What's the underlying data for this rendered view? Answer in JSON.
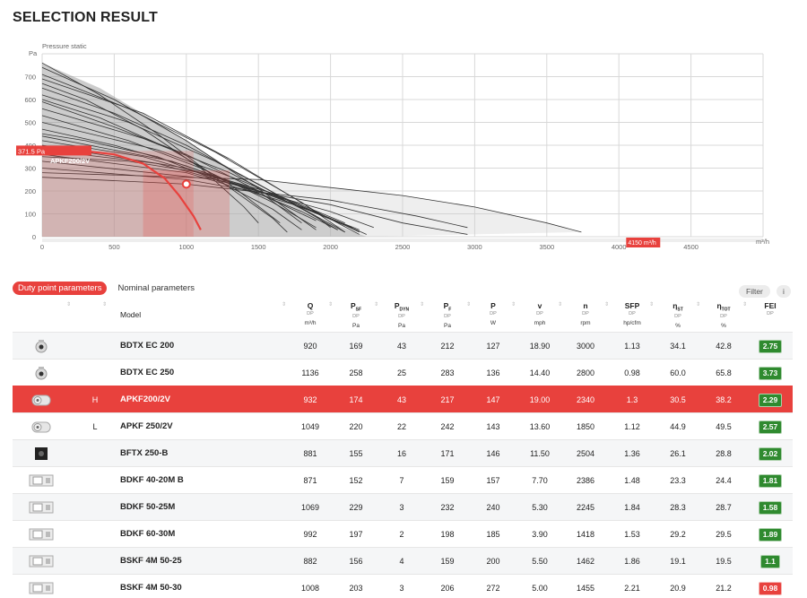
{
  "page": {
    "title": "SELECTION RESULT"
  },
  "chart_data": {
    "type": "line",
    "title": "",
    "ylabel": "Pressure static",
    "y_unit": "Pa",
    "x_unit": "m³/h",
    "xlim": [
      0,
      5000
    ],
    "ylim": [
      0,
      800
    ],
    "x_ticks": [
      0,
      500,
      1000,
      1500,
      2000,
      2500,
      3000,
      3500,
      4000,
      4500
    ],
    "y_ticks": [
      0,
      100,
      200,
      300,
      400,
      500,
      600,
      700
    ],
    "duty_point": {
      "x": 1000,
      "y": 230
    },
    "pressure_marker": "371.5 Pa",
    "flow_marker": "4150 m³/h",
    "highlight_label": "APKF200/2V",
    "highlight_curve": [
      [
        0,
        375
      ],
      [
        250,
        378
      ],
      [
        500,
        360
      ],
      [
        700,
        320
      ],
      [
        850,
        255
      ],
      [
        950,
        180
      ],
      [
        1050,
        90
      ],
      [
        1100,
        30
      ]
    ],
    "curves": [
      [
        [
          0,
          760
        ],
        [
          400,
          620
        ],
        [
          800,
          450
        ],
        [
          1200,
          260
        ],
        [
          1600,
          80
        ],
        [
          1700,
          20
        ]
      ],
      [
        [
          0,
          740
        ],
        [
          500,
          600
        ],
        [
          1000,
          420
        ],
        [
          1500,
          210
        ],
        [
          1900,
          30
        ]
      ],
      [
        [
          0,
          710
        ],
        [
          600,
          560
        ],
        [
          1200,
          370
        ],
        [
          1800,
          150
        ],
        [
          2100,
          20
        ]
      ],
      [
        [
          0,
          690
        ],
        [
          700,
          540
        ],
        [
          1300,
          340
        ],
        [
          1900,
          110
        ],
        [
          2200,
          10
        ]
      ],
      [
        [
          0,
          650
        ],
        [
          500,
          540
        ],
        [
          1000,
          400
        ],
        [
          1500,
          230
        ],
        [
          1900,
          90
        ],
        [
          2000,
          40
        ]
      ],
      [
        [
          0,
          620
        ],
        [
          600,
          500
        ],
        [
          1200,
          330
        ],
        [
          1700,
          160
        ],
        [
          2050,
          30
        ]
      ],
      [
        [
          0,
          590
        ],
        [
          500,
          480
        ],
        [
          1000,
          360
        ],
        [
          1500,
          200
        ],
        [
          1800,
          60
        ]
      ],
      [
        [
          0,
          560
        ],
        [
          700,
          430
        ],
        [
          1300,
          280
        ],
        [
          1900,
          90
        ],
        [
          2100,
          20
        ]
      ],
      [
        [
          0,
          530
        ],
        [
          600,
          420
        ],
        [
          1100,
          300
        ],
        [
          1600,
          150
        ],
        [
          1900,
          40
        ]
      ],
      [
        [
          0,
          500
        ],
        [
          800,
          380
        ],
        [
          1400,
          240
        ],
        [
          2000,
          80
        ],
        [
          2200,
          20
        ]
      ],
      [
        [
          0,
          470
        ],
        [
          500,
          400
        ],
        [
          1000,
          310
        ],
        [
          1500,
          190
        ],
        [
          1900,
          70
        ]
      ],
      [
        [
          0,
          440
        ],
        [
          900,
          330
        ],
        [
          1600,
          180
        ],
        [
          2100,
          50
        ]
      ],
      [
        [
          0,
          420
        ],
        [
          700,
          350
        ],
        [
          1300,
          240
        ],
        [
          1800,
          110
        ],
        [
          2050,
          30
        ]
      ],
      [
        [
          0,
          400
        ],
        [
          1000,
          300
        ],
        [
          1700,
          160
        ],
        [
          2150,
          40
        ]
      ],
      [
        [
          0,
          380
        ],
        [
          800,
          320
        ],
        [
          1500,
          200
        ],
        [
          2000,
          80
        ],
        [
          2250,
          10
        ]
      ],
      [
        [
          0,
          360
        ],
        [
          1000,
          280
        ],
        [
          1800,
          130
        ],
        [
          2200,
          30
        ]
      ],
      [
        [
          0,
          330
        ],
        [
          1200,
          250
        ],
        [
          2000,
          110
        ],
        [
          2300,
          40
        ]
      ],
      [
        [
          0,
          300
        ],
        [
          1000,
          250
        ],
        [
          2000,
          140
        ],
        [
          2500,
          60
        ],
        [
          2950,
          10
        ]
      ],
      [
        [
          0,
          260
        ],
        [
          1000,
          230
        ],
        [
          2000,
          160
        ],
        [
          2600,
          90
        ],
        [
          2950,
          40
        ]
      ],
      [
        [
          0,
          280
        ],
        [
          1500,
          250
        ],
        [
          2500,
          180
        ],
        [
          3000,
          130
        ],
        [
          3500,
          60
        ],
        [
          3740,
          20
        ]
      ],
      [
        [
          0,
          670
        ],
        [
          300,
          600
        ],
        [
          700,
          470
        ],
        [
          1100,
          300
        ],
        [
          1400,
          130
        ],
        [
          1500,
          60
        ]
      ],
      [
        [
          0,
          600
        ],
        [
          400,
          520
        ],
        [
          900,
          380
        ],
        [
          1300,
          230
        ],
        [
          1650,
          60
        ]
      ],
      [
        [
          0,
          450
        ],
        [
          300,
          420
        ],
        [
          800,
          350
        ],
        [
          1200,
          250
        ],
        [
          1600,
          120
        ],
        [
          1800,
          30
        ]
      ],
      [
        [
          0,
          350
        ],
        [
          600,
          330
        ],
        [
          1100,
          280
        ],
        [
          1600,
          190
        ],
        [
          2100,
          60
        ]
      ]
    ]
  },
  "tabs": [
    {
      "label": "Duty point parameters",
      "active": true
    },
    {
      "label": "Nominal parameters",
      "active": false
    }
  ],
  "filter": {
    "label": "Filter",
    "info": "i"
  },
  "columns": [
    {
      "key": "model",
      "label": "Model"
    },
    {
      "key": "q",
      "sym": "Q",
      "sub": "",
      "dp": "DP",
      "unit": "m³/h"
    },
    {
      "key": "psf",
      "sym": "P",
      "sub": "SF",
      "dp": "DP",
      "unit": "Pa"
    },
    {
      "key": "pdyn",
      "sym": "P",
      "sub": "DYN",
      "dp": "DP",
      "unit": "Pa"
    },
    {
      "key": "pf",
      "sym": "P",
      "sub": "F",
      "dp": "DP",
      "unit": "Pa"
    },
    {
      "key": "p",
      "sym": "P",
      "sub": "",
      "dp": "DP",
      "unit": "W"
    },
    {
      "key": "v",
      "sym": "v",
      "sub": "",
      "dp": "DP",
      "unit": "mph"
    },
    {
      "key": "n",
      "sym": "n",
      "sub": "",
      "dp": "DP",
      "unit": "rpm"
    },
    {
      "key": "sfp",
      "sym": "SFP",
      "sub": "",
      "dp": "DP",
      "unit": "hp/cfm"
    },
    {
      "key": "nst",
      "sym": "η",
      "sub": "ST",
      "dp": "DP",
      "unit": "%"
    },
    {
      "key": "ntot",
      "sym": "η",
      "sub": "TOT",
      "dp": "DP",
      "unit": "%"
    },
    {
      "key": "fei",
      "sym": "FEI",
      "sub": "",
      "dp": "DP",
      "unit": ""
    }
  ],
  "rows": [
    {
      "icon": "round-fan-icon",
      "mark": "",
      "model": "BDTX EC 200",
      "q": "920",
      "psf": "169",
      "pdyn": "43",
      "pf": "212",
      "p": "127",
      "v": "18.90",
      "n": "3000",
      "sfp": "1.13",
      "nst": "34.1",
      "ntot": "42.8",
      "fei": "2.75",
      "fei_color": "#2f8a2f",
      "selected": false
    },
    {
      "icon": "round-fan-icon",
      "mark": "",
      "model": "BDTX EC 250",
      "q": "1136",
      "psf": "258",
      "pdyn": "25",
      "pf": "283",
      "p": "136",
      "v": "14.40",
      "n": "2800",
      "sfp": "0.98",
      "nst": "60.0",
      "ntot": "65.8",
      "fei": "3.73",
      "fei_color": "#2f8a2f",
      "selected": false
    },
    {
      "icon": "inline-fan-icon",
      "mark": "H",
      "model": "APKF200/2V",
      "q": "932",
      "psf": "174",
      "pdyn": "43",
      "pf": "217",
      "p": "147",
      "v": "19.00",
      "n": "2340",
      "sfp": "1.3",
      "nst": "30.5",
      "ntot": "38.2",
      "fei": "2.29",
      "fei_color": "#2f8a2f",
      "selected": true
    },
    {
      "icon": "inline-fan-icon",
      "mark": "L",
      "model": "APKF 250/2V",
      "q": "1049",
      "psf": "220",
      "pdyn": "22",
      "pf": "242",
      "p": "143",
      "v": "13.60",
      "n": "1850",
      "sfp": "1.12",
      "nst": "44.9",
      "ntot": "49.5",
      "fei": "2.57",
      "fei_color": "#2f8a2f",
      "selected": false
    },
    {
      "icon": "box-fan-icon",
      "mark": "",
      "model": "BFTX 250-B",
      "q": "881",
      "psf": "155",
      "pdyn": "16",
      "pf": "171",
      "p": "146",
      "v": "11.50",
      "n": "2504",
      "sfp": "1.36",
      "nst": "26.1",
      "ntot": "28.8",
      "fei": "2.02",
      "fei_color": "#2f8a2f",
      "selected": false
    },
    {
      "icon": "duct-fan-icon",
      "mark": "",
      "model": "BDKF 40-20M B",
      "q": "871",
      "psf": "152",
      "pdyn": "7",
      "pf": "159",
      "p": "157",
      "v": "7.70",
      "n": "2386",
      "sfp": "1.48",
      "nst": "23.3",
      "ntot": "24.4",
      "fei": "1.81",
      "fei_color": "#2f8a2f",
      "selected": false
    },
    {
      "icon": "duct-fan-icon",
      "mark": "",
      "model": "BDKF 50-25M",
      "q": "1069",
      "psf": "229",
      "pdyn": "3",
      "pf": "232",
      "p": "240",
      "v": "5.30",
      "n": "2245",
      "sfp": "1.84",
      "nst": "28.3",
      "ntot": "28.7",
      "fei": "1.58",
      "fei_color": "#2f8a2f",
      "selected": false
    },
    {
      "icon": "duct-fan-icon",
      "mark": "",
      "model": "BDKF 60-30M",
      "q": "992",
      "psf": "197",
      "pdyn": "2",
      "pf": "198",
      "p": "185",
      "v": "3.90",
      "n": "1418",
      "sfp": "1.53",
      "nst": "29.2",
      "ntot": "29.5",
      "fei": "1.89",
      "fei_color": "#2f8a2f",
      "selected": false
    },
    {
      "icon": "duct-fan-icon",
      "mark": "",
      "model": "BSKF 4M 50-25",
      "q": "882",
      "psf": "156",
      "pdyn": "4",
      "pf": "159",
      "p": "200",
      "v": "5.50",
      "n": "1462",
      "sfp": "1.86",
      "nst": "19.1",
      "ntot": "19.5",
      "fei": "1.1",
      "fei_color": "#2f8a2f",
      "selected": false
    },
    {
      "icon": "duct-fan-icon",
      "mark": "",
      "model": "BSKF 4M 50-30",
      "q": "1008",
      "psf": "203",
      "pdyn": "3",
      "pf": "206",
      "p": "272",
      "v": "5.00",
      "n": "1455",
      "sfp": "2.21",
      "nst": "20.9",
      "ntot": "21.2",
      "fei": "0.98",
      "fei_color": "#e8413d",
      "selected": false
    }
  ]
}
